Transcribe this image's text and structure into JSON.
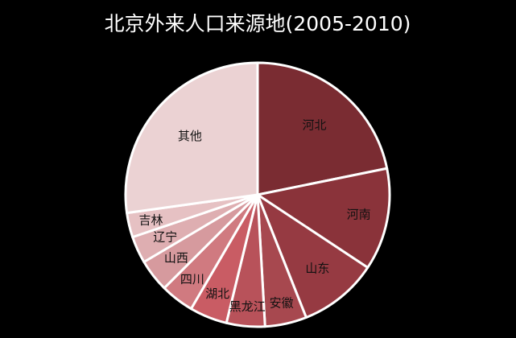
{
  "chart_data": {
    "type": "pie",
    "title": "北京外来人口来源地(2005-2010)",
    "start": "12 o'clock",
    "direction": "clockwise",
    "value_unit": "percent",
    "slices": [
      {
        "label": "河北",
        "value": 21.8,
        "color": "#7a2c32"
      },
      {
        "label": "河南",
        "value": 12.5,
        "color": "#8a333a"
      },
      {
        "label": "山东",
        "value": 9.7,
        "color": "#963a42"
      },
      {
        "label": "安徽",
        "value": 5.1,
        "color": "#a7484f"
      },
      {
        "label": "黑龙江",
        "value": 4.7,
        "color": "#b8525a"
      },
      {
        "label": "湖北",
        "value": 4.6,
        "color": "#c95c64"
      },
      {
        "label": "四川",
        "value": 4.1,
        "color": "#d07a80"
      },
      {
        "label": "山西",
        "value": 4.0,
        "color": "#d69a9e"
      },
      {
        "label": "辽宁",
        "value": 3.3,
        "color": "#deaeb1"
      },
      {
        "label": "吉林",
        "value": 3.0,
        "color": "#e6c1c3"
      },
      {
        "label": "其他",
        "value": 27.2,
        "color": "#ebd2d3"
      }
    ]
  }
}
